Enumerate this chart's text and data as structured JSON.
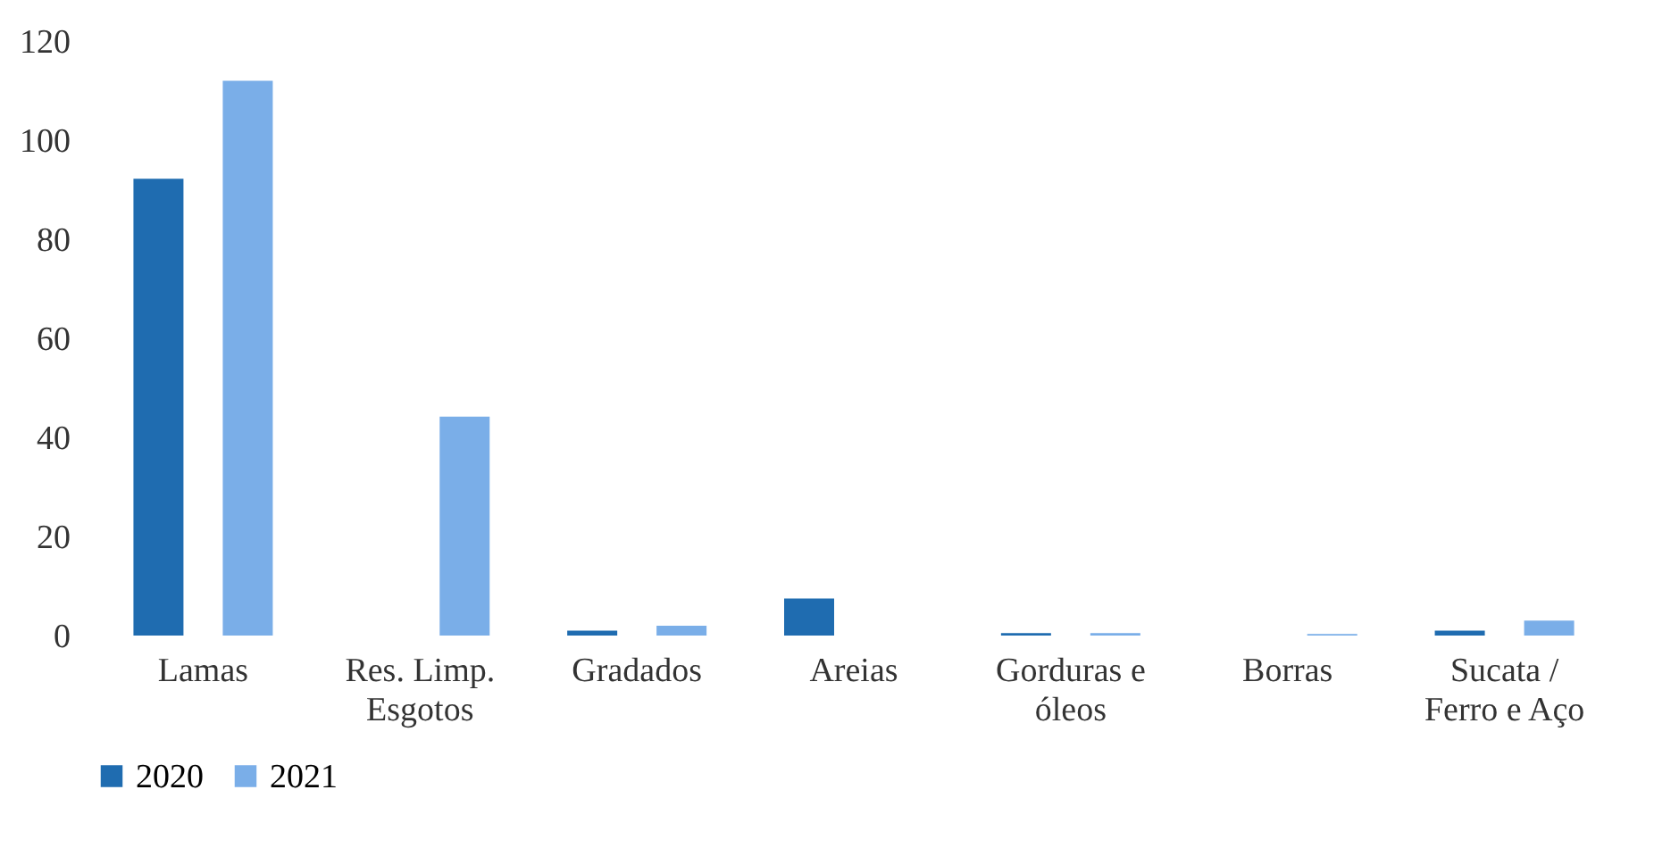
{
  "chart_data": {
    "type": "bar",
    "categories": [
      "Lamas",
      "Res. Limp. Esgotos",
      "Gradados",
      "Areias",
      "Gorduras e óleos",
      "Borras",
      "Sucata / Ferro e Aço"
    ],
    "series": [
      {
        "name": "2020",
        "color": "#1f6cb0",
        "values": [
          92.2,
          null,
          1,
          7.5,
          0.5,
          null,
          1
        ]
      },
      {
        "name": "2021",
        "color": "#7aaee8",
        "values": [
          112,
          44.2,
          2,
          null,
          0.5,
          0.3,
          3
        ]
      }
    ],
    "ylim": [
      0,
      120
    ],
    "yticks": [
      0,
      20,
      40,
      60,
      80,
      100,
      120
    ],
    "grid": false,
    "legend": "bottom"
  }
}
